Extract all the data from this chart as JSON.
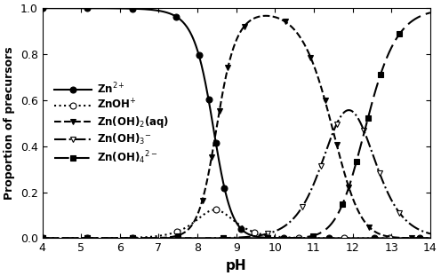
{
  "pH_min": 4,
  "pH_max": 14,
  "pH_points": 1000,
  "ylim": [
    0.0,
    1.0
  ],
  "yticks": [
    0.0,
    0.2,
    0.4,
    0.6,
    0.8,
    1.0
  ],
  "xticks": [
    4,
    5,
    6,
    7,
    8,
    9,
    10,
    11,
    12,
    13,
    14
  ],
  "xlabel": "pH",
  "ylabel": "Proportion of precursors",
  "log_beta": [
    5.0,
    11.1,
    13.6,
    15.3
  ],
  "linewidth": 1.5,
  "legend_labels": [
    "Zn$^{2+}$",
    "ZnOH$^{+}$",
    "Zn(OH)$_2$(aq)",
    "Zn(OH)$_3$$^{-}$",
    "Zn(OH)$_4$$^{2-}$"
  ],
  "linestyles": [
    "-",
    ":",
    "--",
    "-.",
    "--"
  ],
  "markers": [
    "o",
    "o",
    "v",
    "v",
    "s"
  ],
  "markerfill": [
    "black",
    "none",
    "black",
    "none",
    "black"
  ],
  "markersize": 5,
  "marker_every": 0.1,
  "background_color": "white",
  "figsize": [
    4.96,
    3.11
  ],
  "dpi": 100
}
